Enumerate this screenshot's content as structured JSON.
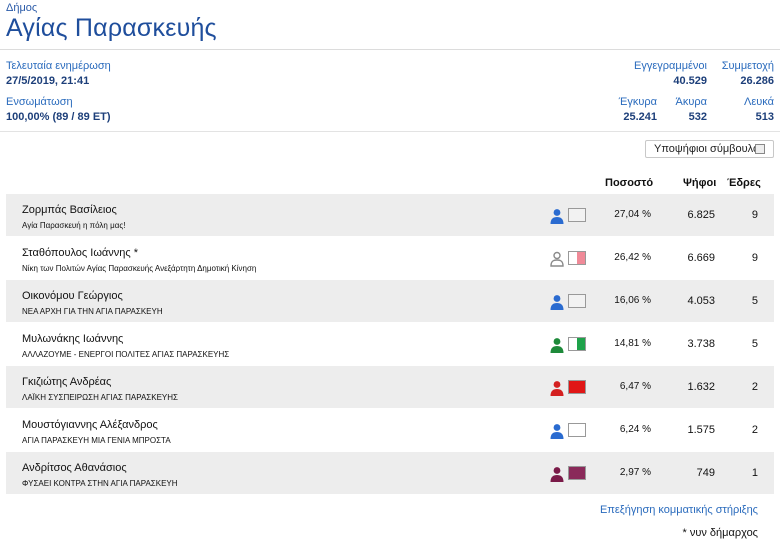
{
  "header": {
    "label": "Δήμος",
    "title": "Αγίας Παρασκευής"
  },
  "info": {
    "updated_label": "Τελευταία ενημέρωση",
    "updated_value": "27/5/2019, 21:41",
    "integration_label": "Ενσωμάτωση",
    "integration_value": "100,00% (89 / 89 ΕΤ)",
    "registered_label": "Εγγεγραμμένοι",
    "registered_value": "40.529",
    "turnout_label": "Συμμετοχή",
    "turnout_value": "26.286",
    "valid_label": "Έγκυρα",
    "valid_value": "25.241",
    "invalid_label": "Άκυρα",
    "invalid_value": "532",
    "blank_label": "Λευκά",
    "blank_value": "513"
  },
  "toggle": {
    "label": "Υποψήφιοι σύμβουλοι",
    "checked": false
  },
  "columns": {
    "percent": "Ποσοστό",
    "votes": "Ψήφοι",
    "seats": "Έδρες"
  },
  "rows": [
    {
      "candidate": "Ζορμπάς Βασίλειος",
      "party": "Αγία Παρασκευή η πόλη μας!",
      "percent": "27,04 %",
      "votes": "6.825",
      "seats": "9",
      "icon": "person-icon",
      "person_color": "#2a6bd0",
      "person_outline": false,
      "flag_colors": [
        "#f2f2f2"
      ]
    },
    {
      "candidate": "Σταθόπουλος Ιωάννης *",
      "party": "Νίκη των Πολιτών Αγίας Παρασκευής Ανεξάρτητη Δημοτική Κίνηση",
      "percent": "26,42 %",
      "votes": "6.669",
      "seats": "9",
      "icon": "person-outline-icon",
      "person_color": "#8a8a8a",
      "person_outline": true,
      "flag_colors": [
        "#ffffff",
        "#f08a98"
      ]
    },
    {
      "candidate": "Οικονόμου Γεώργιος",
      "party": "ΝΕΑ ΑΡΧΗ ΓΙΑ ΤΗΝ ΑΓΙΑ ΠΑΡΑΣΚΕΥΗ",
      "percent": "16,06 %",
      "votes": "4.053",
      "seats": "5",
      "icon": "person-icon",
      "person_color": "#2a6bd0",
      "person_outline": false,
      "flag_colors": [
        "#f2f2f2"
      ]
    },
    {
      "candidate": "Μυλωνάκης Ιωάννης",
      "party": "ΑΛΛΑΖΟΥΜΕ - ΕΝΕΡΓΟΙ ΠΟΛΙΤΕΣ ΑΓΙΑΣ ΠΑΡΑΣΚΕΥΗΣ",
      "percent": "14,81 %",
      "votes": "3.738",
      "seats": "5",
      "icon": "person-icon",
      "person_color": "#1e8a3a",
      "person_outline": false,
      "flag_colors": [
        "#ffffff",
        "#1ea24a"
      ]
    },
    {
      "candidate": "Γκιζιώτης Ανδρέας",
      "party": "ΛΑΪΚΗ ΣΥΣΠΕΙΡΩΣΗ ΑΓΙΑΣ ΠΑΡΑΣΚΕΥΗΣ",
      "percent": "6,47 %",
      "votes": "1.632",
      "seats": "2",
      "icon": "person-icon",
      "person_color": "#d42020",
      "person_outline": false,
      "flag_colors": [
        "#e01616"
      ]
    },
    {
      "candidate": "Μουστόγιαννης Αλέξανδρος",
      "party": "ΑΓΙΑ ΠΑΡΑΣΚΕΥΗ ΜΙΑ ΓΕΝΙΑ ΜΠΡΟΣΤΑ",
      "percent": "6,24 %",
      "votes": "1.575",
      "seats": "2",
      "icon": "person-icon",
      "person_color": "#2a6bd0",
      "person_outline": false,
      "flag_colors": [
        "#ffffff"
      ]
    },
    {
      "candidate": "Ανδρίτσος Αθανάσιος",
      "party": "ΦΥΣΑΕΙ ΚΟΝΤΡΑ ΣΤΗΝ ΑΓΙΑ ΠΑΡΑΣΚΕΥΗ",
      "percent": "2,97 %",
      "votes": "749",
      "seats": "1",
      "icon": "person-icon",
      "person_color": "#7a1a48",
      "person_outline": false,
      "flag_colors": [
        "#8a2a5a"
      ]
    }
  ],
  "footer": {
    "link": "Επεξήγηση κομματικής στήριξης",
    "note": "* νυν δήμαρχος"
  }
}
